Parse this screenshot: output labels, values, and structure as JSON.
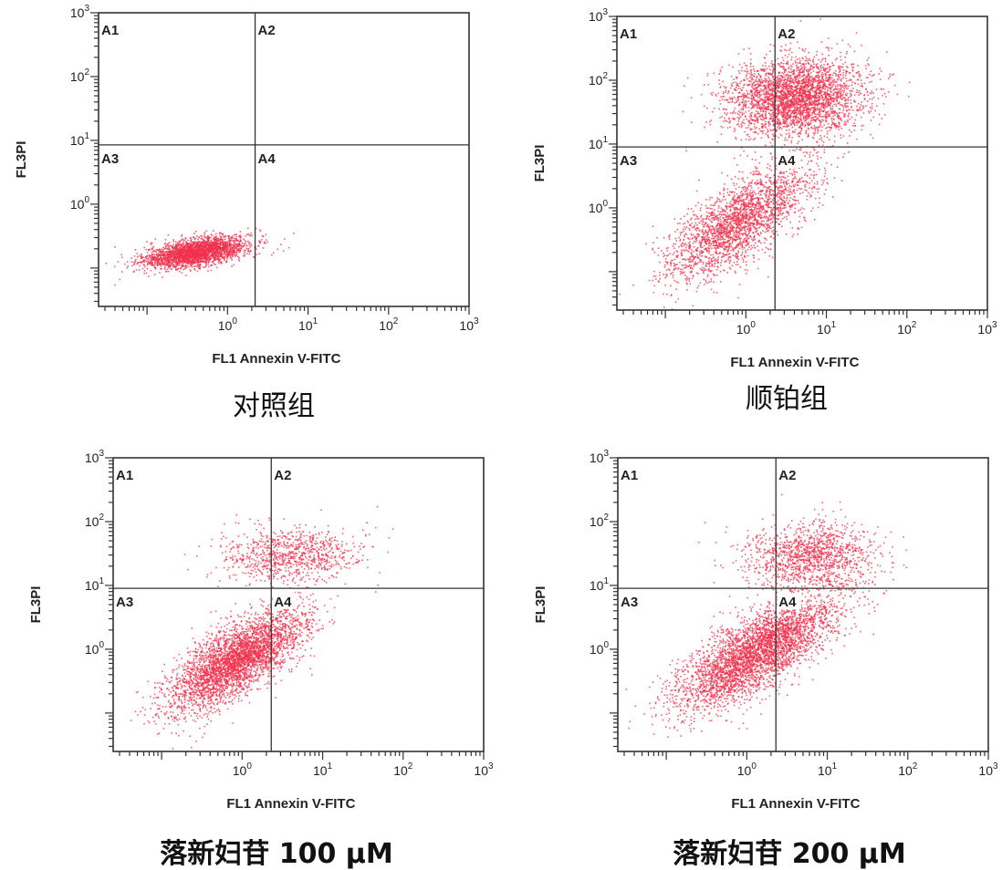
{
  "chart_data": [
    {
      "type": "scatter",
      "caption": "对照组",
      "xlabel": "FL1 Annexin V-FITC",
      "ylabel": "FL3PI",
      "xscale": "log",
      "yscale": "log",
      "xlim": [
        0.025,
        1000
      ],
      "ylim": [
        0.025,
        1000
      ],
      "x_ticks": [
        "10^0",
        "10^1",
        "10^2",
        "10^3"
      ],
      "y_ticks": [
        "10^0",
        "10^1",
        "10^2",
        "10^3"
      ],
      "quadrant_gates": {
        "x": 2.2,
        "y": 8.5
      },
      "quadrant_labels": [
        "A1",
        "A2",
        "A3",
        "A4"
      ],
      "point_color": "#f0304c",
      "clusters": [
        {
          "cx": 0.4,
          "cy": 0.18,
          "sx": 0.32,
          "sy": 0.12,
          "n": 2600,
          "rho": 0.5
        }
      ]
    },
    {
      "type": "scatter",
      "caption": "顺铂组",
      "xlabel": "FL1 Annexin V-FITC",
      "ylabel": "FL3PI",
      "xscale": "log",
      "yscale": "log",
      "xlim": [
        0.025,
        1000
      ],
      "ylim": [
        0.025,
        1000
      ],
      "x_ticks": [
        "10^0",
        "10^1",
        "10^2",
        "10^3"
      ],
      "y_ticks": [
        "10^0",
        "10^1",
        "10^2",
        "10^3"
      ],
      "quadrant_gates": {
        "x": 2.3,
        "y": 9.0
      },
      "quadrant_labels": [
        "A1",
        "A2",
        "A3",
        "A4"
      ],
      "point_color": "#f0304c",
      "clusters": [
        {
          "cx": 4.0,
          "cy": 55,
          "sx": 0.42,
          "sy": 0.3,
          "n": 3200,
          "rho": 0.1
        },
        {
          "cx": 0.8,
          "cy": 0.6,
          "sx": 0.45,
          "sy": 0.45,
          "n": 2400,
          "rho": 0.72
        }
      ]
    },
    {
      "type": "scatter",
      "caption": "落新妇苷 100 μM",
      "xlabel": "FL1 Annexin V-FITC",
      "ylabel": "FL3PI",
      "xscale": "log",
      "yscale": "log",
      "xlim": [
        0.025,
        1000
      ],
      "ylim": [
        0.025,
        1000
      ],
      "x_ticks": [
        "10^0",
        "10^1",
        "10^2",
        "10^3"
      ],
      "y_ticks": [
        "10^0",
        "10^1",
        "10^2",
        "10^3"
      ],
      "quadrant_gates": {
        "x": 2.3,
        "y": 9.0
      },
      "quadrant_labels": [
        "A1",
        "A2",
        "A3",
        "A4"
      ],
      "point_color": "#f0304c",
      "clusters": [
        {
          "cx": 0.85,
          "cy": 0.7,
          "sx": 0.42,
          "sy": 0.4,
          "n": 3600,
          "rho": 0.72
        },
        {
          "cx": 4.0,
          "cy": 30,
          "sx": 0.45,
          "sy": 0.22,
          "n": 900,
          "rho": 0.05
        }
      ]
    },
    {
      "type": "scatter",
      "caption": "落新妇苷 200 μM",
      "xlabel": "FL1 Annexin V-FITC",
      "ylabel": "FL3PI",
      "xscale": "log",
      "yscale": "log",
      "xlim": [
        0.025,
        1000
      ],
      "ylim": [
        0.025,
        1000
      ],
      "x_ticks": [
        "10^0",
        "10^1",
        "10^2",
        "10^3"
      ],
      "y_ticks": [
        "10^0",
        "10^1",
        "10^2",
        "10^3"
      ],
      "quadrant_gates": {
        "x": 2.3,
        "y": 9.0
      },
      "quadrant_labels": [
        "A1",
        "A2",
        "A3",
        "A4"
      ],
      "point_color": "#f0304c",
      "clusters": [
        {
          "cx": 1.3,
          "cy": 0.9,
          "sx": 0.5,
          "sy": 0.45,
          "n": 3800,
          "rho": 0.75
        },
        {
          "cx": 6.0,
          "cy": 30,
          "sx": 0.4,
          "sy": 0.25,
          "n": 1300,
          "rho": 0.05
        }
      ]
    }
  ]
}
